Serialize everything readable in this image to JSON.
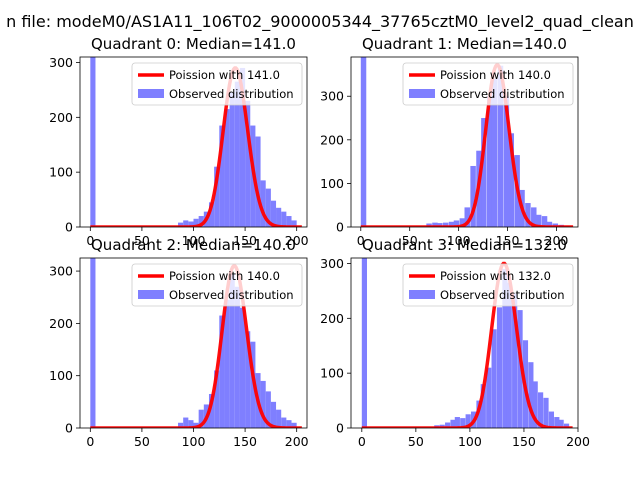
{
  "suptitle": "n file: modeM0/AS1A11_106T02_9000005344_37765cztM0_level2_quad_clean",
  "colors": {
    "bar": "#7f7fff",
    "fit": "#ff0000",
    "axis": "#000000"
  },
  "chart_data": [
    {
      "type": "bar",
      "title": "Quadrant 0: Median=141.0",
      "xlim": [
        -10,
        210
      ],
      "ylim": [
        0,
        310
      ],
      "xticks": [
        0,
        50,
        100,
        150,
        200
      ],
      "yticks": [
        0,
        100,
        200,
        300
      ],
      "bin_width": 5,
      "bins": [
        [
          0,
          310
        ],
        [
          85,
          8
        ],
        [
          90,
          12
        ],
        [
          95,
          10
        ],
        [
          100,
          15
        ],
        [
          105,
          20
        ],
        [
          110,
          28
        ],
        [
          115,
          45
        ],
        [
          120,
          110
        ],
        [
          125,
          185
        ],
        [
          130,
          215
        ],
        [
          135,
          245
        ],
        [
          140,
          265
        ],
        [
          145,
          290
        ],
        [
          150,
          230
        ],
        [
          155,
          185
        ],
        [
          160,
          165
        ],
        [
          165,
          85
        ],
        [
          170,
          70
        ],
        [
          175,
          48
        ],
        [
          180,
          35
        ],
        [
          185,
          28
        ],
        [
          190,
          20
        ],
        [
          195,
          12
        ]
      ],
      "fit_lambda": 141.0,
      "fit_scale": 290,
      "legend": [
        "Poission with 141.0",
        "Observed distribution"
      ]
    },
    {
      "type": "bar",
      "title": "Quadrant 1: Median=140.0",
      "xlim": [
        -10,
        222
      ],
      "ylim": [
        0,
        390
      ],
      "xticks": [
        0,
        50,
        100,
        150,
        200
      ],
      "yticks": [
        0,
        100,
        200,
        300
      ],
      "bin_width": 5.6,
      "bins": [
        [
          0,
          390
        ],
        [
          67,
          8
        ],
        [
          73,
          10
        ],
        [
          78,
          9
        ],
        [
          84,
          10
        ],
        [
          90,
          12
        ],
        [
          95,
          15
        ],
        [
          101,
          20
        ],
        [
          106,
          45
        ],
        [
          112,
          140
        ],
        [
          118,
          175
        ],
        [
          123,
          250
        ],
        [
          129,
          300
        ],
        [
          134,
          340
        ],
        [
          140,
          370
        ],
        [
          146,
          300
        ],
        [
          151,
          215
        ],
        [
          157,
          165
        ],
        [
          162,
          85
        ],
        [
          168,
          55
        ],
        [
          174,
          45
        ],
        [
          179,
          28
        ],
        [
          185,
          25
        ],
        [
          190,
          12
        ],
        [
          196,
          8
        ],
        [
          202,
          5
        ],
        [
          207,
          3
        ]
      ],
      "fit_lambda": 140.0,
      "fit_scale": 372,
      "legend": [
        "Poission with 140.0",
        "Observed distribution"
      ]
    },
    {
      "type": "bar",
      "title": "Quadrant 2: Median=140.0",
      "xlim": [
        -10,
        210
      ],
      "ylim": [
        0,
        325
      ],
      "xticks": [
        0,
        50,
        100,
        150,
        200
      ],
      "yticks": [
        0,
        100,
        200,
        300
      ],
      "bin_width": 5,
      "bins": [
        [
          0,
          325
        ],
        [
          85,
          10
        ],
        [
          90,
          20
        ],
        [
          95,
          15
        ],
        [
          100,
          10
        ],
        [
          105,
          35
        ],
        [
          110,
          45
        ],
        [
          115,
          65
        ],
        [
          120,
          110
        ],
        [
          125,
          215
        ],
        [
          130,
          245
        ],
        [
          135,
          295
        ],
        [
          140,
          270
        ],
        [
          145,
          230
        ],
        [
          150,
          185
        ],
        [
          155,
          165
        ],
        [
          160,
          105
        ],
        [
          165,
          90
        ],
        [
          170,
          70
        ],
        [
          175,
          50
        ],
        [
          180,
          35
        ],
        [
          185,
          20
        ],
        [
          190,
          15
        ],
        [
          195,
          10
        ]
      ],
      "fit_lambda": 140.0,
      "fit_scale": 310,
      "legend": [
        "Poission with 140.0",
        "Observed distribution"
      ]
    },
    {
      "type": "bar",
      "title": "Quadrant 3: Median=132.0",
      "xlim": [
        -10,
        200
      ],
      "ylim": [
        0,
        310
      ],
      "xticks": [
        0,
        50,
        100,
        150,
        200
      ],
      "yticks": [
        0,
        100,
        200,
        300
      ],
      "bin_width": 4.8,
      "bins": [
        [
          0,
          310
        ],
        [
          67,
          5
        ],
        [
          72,
          6
        ],
        [
          77,
          10
        ],
        [
          82,
          15
        ],
        [
          86,
          20
        ],
        [
          91,
          18
        ],
        [
          96,
          25
        ],
        [
          101,
          30
        ],
        [
          106,
          50
        ],
        [
          110,
          80
        ],
        [
          115,
          110
        ],
        [
          120,
          180
        ],
        [
          125,
          220
        ],
        [
          130,
          290
        ],
        [
          134,
          265
        ],
        [
          139,
          245
        ],
        [
          144,
          215
        ],
        [
          149,
          160
        ],
        [
          154,
          120
        ],
        [
          158,
          85
        ],
        [
          163,
          65
        ],
        [
          168,
          55
        ],
        [
          173,
          30
        ],
        [
          178,
          20
        ],
        [
          182,
          15
        ],
        [
          187,
          8
        ]
      ],
      "fit_lambda": 132.0,
      "fit_scale": 300,
      "legend": [
        "Poission with 132.0",
        "Observed distribution"
      ]
    }
  ]
}
